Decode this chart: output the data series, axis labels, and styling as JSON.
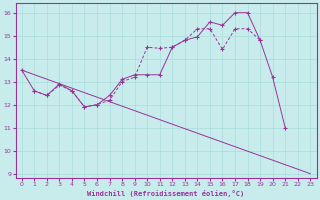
{
  "xlabel": "Windchill (Refroidissement éolien,°C)",
  "bg_color": "#c8ecec",
  "line_color": "#993399",
  "grid_color": "#aadddd",
  "xlim": [
    -0.5,
    23.5
  ],
  "ylim": [
    8.8,
    16.4
  ],
  "xticks": [
    0,
    1,
    2,
    3,
    4,
    5,
    6,
    7,
    8,
    9,
    10,
    11,
    12,
    13,
    14,
    15,
    16,
    17,
    18,
    19,
    20,
    21,
    22,
    23
  ],
  "yticks": [
    9,
    10,
    11,
    12,
    13,
    14,
    15,
    16
  ],
  "line1_x": [
    0,
    1,
    2,
    3,
    4,
    5,
    6,
    7,
    8,
    9,
    10,
    11,
    12,
    13,
    14,
    15,
    16,
    17,
    18,
    19,
    20,
    21
  ],
  "line1_y": [
    13.5,
    12.6,
    12.4,
    12.9,
    12.6,
    11.9,
    12.0,
    12.4,
    13.1,
    13.3,
    13.3,
    13.3,
    14.5,
    14.8,
    14.95,
    15.6,
    15.45,
    16.0,
    16.0,
    14.8,
    13.2,
    11.0
  ],
  "line2_x": [
    1,
    2,
    3,
    4,
    5,
    6,
    7,
    8,
    9,
    10,
    11,
    12,
    13,
    14,
    15,
    16,
    17,
    18,
    19
  ],
  "line2_y": [
    12.6,
    12.4,
    12.85,
    12.6,
    11.9,
    12.0,
    12.2,
    13.0,
    13.2,
    14.5,
    14.45,
    14.5,
    14.8,
    15.3,
    15.3,
    14.4,
    15.3,
    15.3,
    14.8
  ],
  "line3_x": [
    0,
    23
  ],
  "line3_y": [
    13.5,
    9.0
  ]
}
